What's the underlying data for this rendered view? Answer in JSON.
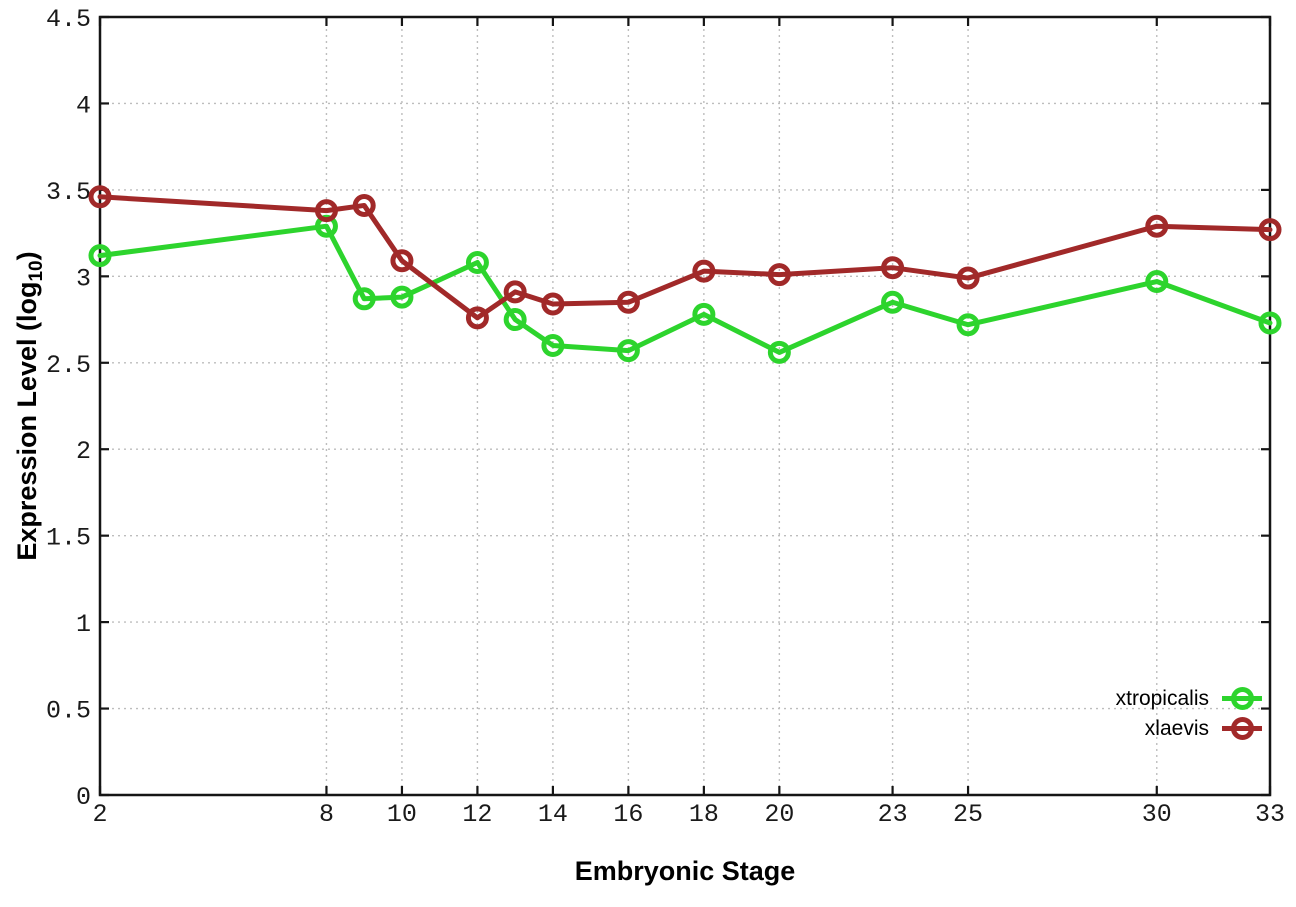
{
  "figure": {
    "background": "#ffffff",
    "axis_color": "#151515",
    "grid_color": "#bdbdbd",
    "tick_label_color": "#1a1a1a"
  },
  "chart_data": {
    "type": "line",
    "title": "",
    "xlabel": "Embryonic Stage",
    "ylabel": "Expression Level (log10)",
    "ylabel_rich": {
      "text": "Expression Level (log",
      "subscript": "10",
      "suffix": ")"
    },
    "x": [
      2,
      8,
      9,
      10,
      12,
      13,
      14,
      16,
      18,
      20,
      23,
      25,
      30,
      33
    ],
    "xtick_values": [
      2,
      8,
      10,
      12,
      14,
      16,
      18,
      20,
      23,
      25,
      30,
      33
    ],
    "xtick_labels": [
      "2",
      "8",
      "10",
      "12",
      "14",
      "16",
      "18",
      "20",
      "23",
      "25",
      "30",
      "33"
    ],
    "ytick_values": [
      0,
      0.5,
      1,
      1.5,
      2,
      2.5,
      3,
      3.5,
      4,
      4.5
    ],
    "ytick_labels": [
      "0",
      "0.5",
      "1",
      "1.5",
      "2",
      "2.5",
      "3",
      "3.5",
      "4",
      "4.5"
    ],
    "xlim": [
      2,
      33
    ],
    "ylim": [
      0,
      4.5
    ],
    "grid": true,
    "legend_position": "inside-bottom-right",
    "series": [
      {
        "name": "xtropicalis",
        "color": "#2dd42d",
        "marker": "open-circle",
        "values": [
          3.12,
          3.29,
          2.87,
          2.88,
          3.08,
          2.75,
          2.6,
          2.57,
          2.78,
          2.56,
          2.85,
          2.72,
          2.97,
          2.73
        ]
      },
      {
        "name": "xlaevis",
        "color": "#a12929",
        "marker": "open-circle",
        "values": [
          3.46,
          3.38,
          3.41,
          3.09,
          2.76,
          2.91,
          2.84,
          2.85,
          3.03,
          3.01,
          3.05,
          2.99,
          3.29,
          3.27
        ]
      }
    ]
  },
  "legend": {
    "entries": [
      {
        "label": "xtropicalis",
        "color": "#2dd42d"
      },
      {
        "label": "xlaevis",
        "color": "#a12929"
      }
    ]
  }
}
